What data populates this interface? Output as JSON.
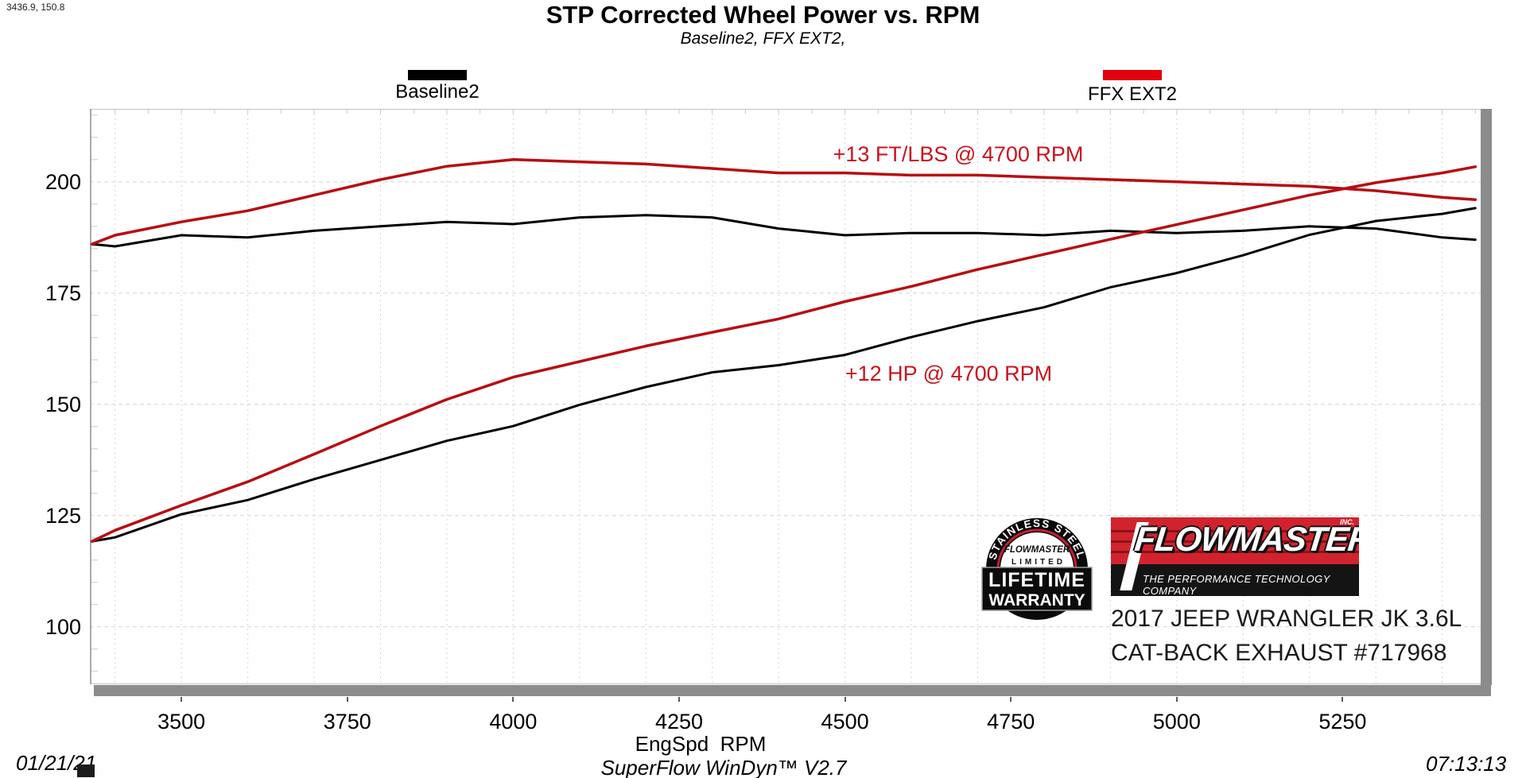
{
  "cursor_readout": "3436.9, 150.8",
  "header": {
    "title": "STP Corrected Wheel Power vs. RPM",
    "subtitle": "Baseline2, FFX EXT2,"
  },
  "legend": [
    {
      "label": "Baseline2",
      "color": "#000000"
    },
    {
      "label": "FFX EXT2",
      "color": "#e3000f"
    }
  ],
  "footer": {
    "date": "01/21/21",
    "app_version": "SuperFlow WinDyn™ V2.7",
    "time": "07:13:13"
  },
  "branding": {
    "badge": {
      "arc_text": "STAINLESS STEEL",
      "line1": "FLOWMASTER",
      "line2": "LIMITED",
      "line3": "LIFETIME",
      "line4": "WARRANTY"
    },
    "logo_text": "FLOWMASTER",
    "logo_inc": "INC.",
    "logo_tagline": "THE PERFORMANCE TECHNOLOGY COMPANY",
    "vehicle_line1": "2017 JEEP WRANGLER JK 3.6L",
    "vehicle_line2": "CAT-BACK EXHAUST #717968",
    "logo_red": "#d1232e"
  },
  "chart_data": {
    "type": "line",
    "title": "STP Corrected Wheel Power vs. RPM",
    "subtitle": "Baseline2, FFX EXT2,",
    "xlabel": "EngSpd  RPM",
    "ylabel": "",
    "xlim": [
      3362,
      5458
    ],
    "ylim": [
      87.1,
      216.4
    ],
    "xticks": [
      3500,
      3750,
      4000,
      4250,
      4500,
      4750,
      5000,
      5250
    ],
    "yticks": [
      200,
      175,
      150,
      125,
      100
    ],
    "grid": {
      "x_rpm": [
        3400,
        3500,
        3600,
        3700,
        3800,
        3900,
        4000,
        4100,
        4200,
        4300,
        4400,
        4500,
        4600,
        4700,
        4800,
        4900,
        5000,
        5100,
        5200,
        5300,
        5400
      ],
      "y_values": [
        100,
        125,
        150,
        175,
        200
      ],
      "y_minor": [
        90,
        95,
        105,
        110,
        115,
        120,
        130,
        135,
        140,
        145,
        155,
        160,
        165,
        170,
        180,
        185,
        190,
        195,
        205,
        210,
        215
      ],
      "x_minor_step": 50
    },
    "legend_position": "top",
    "annotations": [
      {
        "text": "+13 FT/LBS @ 4700 RPM",
        "rpm": 4700,
        "color": "#c8141e"
      },
      {
        "text": "+12 HP @ 4700 RPM",
        "rpm": 4700,
        "color": "#c8141e"
      }
    ],
    "x": [
      3365,
      3400,
      3500,
      3600,
      3700,
      3800,
      3900,
      4000,
      4100,
      4200,
      4300,
      4400,
      4500,
      4600,
      4700,
      4800,
      4900,
      5000,
      5100,
      5200,
      5300,
      5400,
      5450
    ],
    "series": [
      {
        "id": "baseline2-torque",
        "name": "Baseline2 Torque (ft-lbs)",
        "color": "#000000",
        "width": 3,
        "values": [
          186,
          185.5,
          188,
          187.5,
          189,
          190,
          191,
          190.5,
          192,
          192.5,
          192,
          189.5,
          188,
          188.5,
          188.5,
          188,
          189,
          188.5,
          189,
          190,
          189.5,
          187.5,
          187
        ]
      },
      {
        "id": "baseline2-power",
        "name": "Baseline2 Power (HP)",
        "color": "#000000",
        "width": 3,
        "values": [
          119.2,
          120.1,
          125.3,
          128.5,
          133.2,
          137.5,
          141.8,
          145.1,
          149.9,
          153.9,
          157.2,
          158.8,
          161.1,
          165.1,
          168.7,
          171.8,
          176.3,
          179.5,
          183.5,
          188.1,
          191.2,
          192.8,
          194.1
        ]
      },
      {
        "id": "ffx-ext2-torque",
        "name": "FFX EXT2 Torque (ft-lbs)",
        "color": "#b80d12",
        "width": 3.5,
        "values": [
          186,
          188,
          191,
          193.5,
          197,
          200.5,
          203.5,
          205,
          204.5,
          204,
          203,
          202,
          202,
          201.5,
          201.5,
          201,
          200.5,
          200,
          199.5,
          199,
          198,
          196.5,
          196
        ]
      },
      {
        "id": "ffx-ext2-power",
        "name": "FFX EXT2 Power (HP)",
        "color": "#b80d12",
        "width": 3.5,
        "values": [
          119.2,
          121.7,
          127.3,
          132.6,
          138.8,
          145.1,
          151.1,
          156.1,
          159.6,
          163.1,
          166.2,
          169.2,
          173.1,
          176.5,
          180.3,
          183.7,
          187.1,
          190.4,
          193.7,
          197.0,
          199.8,
          202.0,
          203.4
        ]
      }
    ]
  }
}
